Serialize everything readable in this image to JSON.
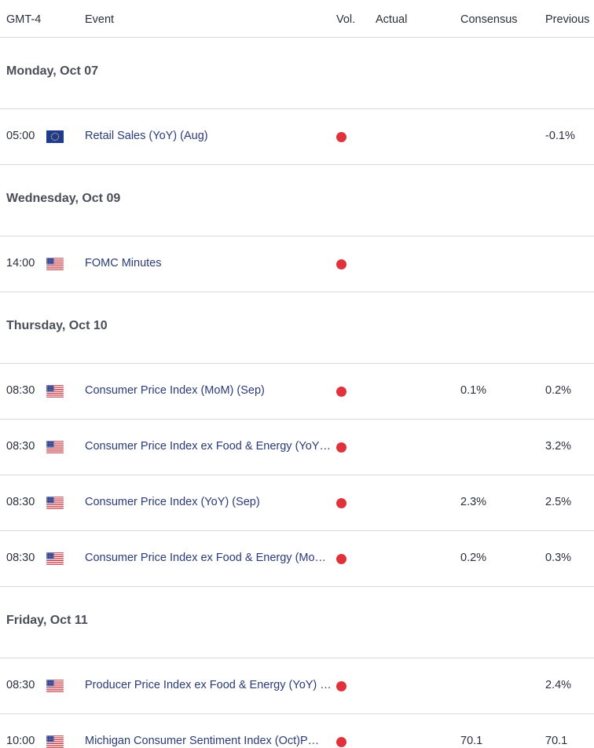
{
  "columns": {
    "time": "GMT-4",
    "event": "Event",
    "vol": "Vol.",
    "actual": "Actual",
    "consensus": "Consensus",
    "previous": "Previous"
  },
  "days": [
    {
      "label": "Monday, Oct 07",
      "events": [
        {
          "time": "05:00",
          "flag": "eu-flag-icon",
          "event": "Retail Sales (YoY) (Aug)",
          "actual": "",
          "consensus": "",
          "previous": "-0.1%"
        }
      ]
    },
    {
      "label": "Wednesday, Oct 09",
      "events": [
        {
          "time": "14:00",
          "flag": "us-flag-icon",
          "event": "FOMC Minutes",
          "actual": "",
          "consensus": "",
          "previous": ""
        }
      ]
    },
    {
      "label": "Thursday, Oct 10",
      "events": [
        {
          "time": "08:30",
          "flag": "us-flag-icon",
          "event": "Consumer Price Index (MoM) (Sep)",
          "actual": "",
          "consensus": "0.1%",
          "previous": "0.2%"
        },
        {
          "time": "08:30",
          "flag": "us-flag-icon",
          "event": "Consumer Price Index ex Food & Energy (YoY…",
          "actual": "",
          "consensus": "",
          "previous": "3.2%"
        },
        {
          "time": "08:30",
          "flag": "us-flag-icon",
          "event": "Consumer Price Index (YoY) (Sep)",
          "actual": "",
          "consensus": "2.3%",
          "previous": "2.5%"
        },
        {
          "time": "08:30",
          "flag": "us-flag-icon",
          "event": "Consumer Price Index ex Food & Energy (Mo…",
          "actual": "",
          "consensus": "0.2%",
          "previous": "0.3%"
        }
      ]
    },
    {
      "label": "Friday, Oct 11",
      "events": [
        {
          "time": "08:30",
          "flag": "us-flag-icon",
          "event": "Producer Price Index ex Food & Energy (YoY) …",
          "actual": "",
          "consensus": "",
          "previous": "2.4%"
        },
        {
          "time": "10:00",
          "flag": "us-flag-icon",
          "event": "Michigan Consumer Sentiment Index (Oct)P…",
          "actual": "",
          "consensus": "70.1",
          "previous": "70.1"
        }
      ]
    }
  ],
  "colors": {
    "volatility_dot": "#e0323c",
    "event_text": "#2a3a78",
    "divider": "#d9d9de"
  }
}
